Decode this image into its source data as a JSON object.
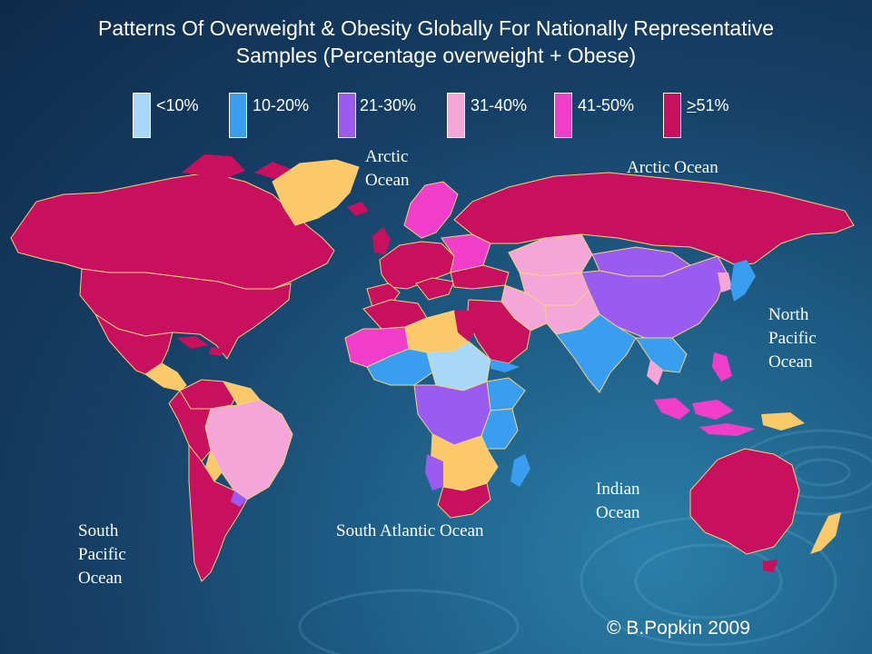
{
  "title_line1": "Patterns Of Overweight & Obesity Globally For Nationally Representative",
  "title_line2": "Samples (Percentage overweight + Obese)",
  "legend": [
    {
      "label": "<10%",
      "color": "#a8d8f8"
    },
    {
      "label": "10-20%",
      "color": "#3a9ef0"
    },
    {
      "label": "21-30%",
      "color": "#9a5cf0"
    },
    {
      "label": "31-40%",
      "color": "#f4a6d8"
    },
    {
      "label": "41-50%",
      "color": "#f03ecb"
    },
    {
      "label_prefix": ">",
      "label_suffix": "51%",
      "color": "#c8105e"
    }
  ],
  "other_color": "#fbc86a",
  "oceans": {
    "arctic_1": "Arctic",
    "arctic_2": "Ocean",
    "arctic_right": "Arctic Ocean",
    "north_pacific_1": "North",
    "north_pacific_2": "Pacific",
    "north_pacific_3": "Ocean",
    "south_pacific_1": "South",
    "south_pacific_2": "Pacific",
    "south_pacific_3": "Ocean",
    "south_atlantic": "South Atlantic Ocean",
    "indian_1": "Indian",
    "indian_2": "Ocean"
  },
  "credit": "© B.Popkin 2009"
}
